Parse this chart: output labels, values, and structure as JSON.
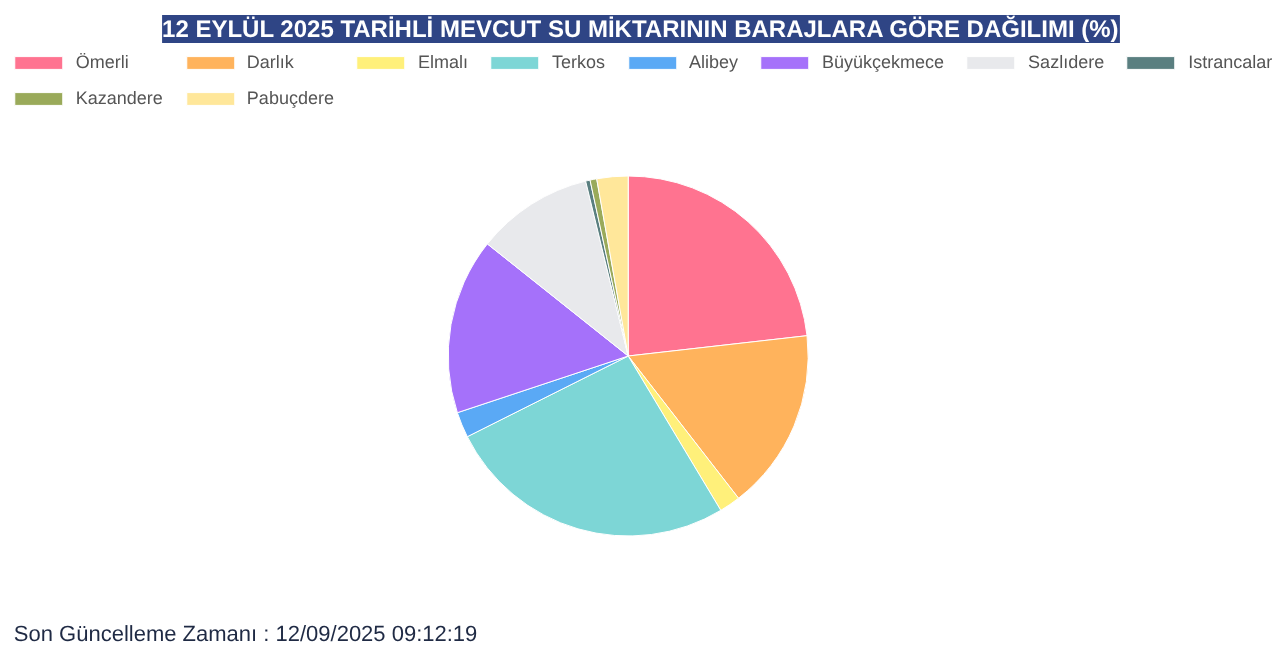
{
  "chart_data": {
    "type": "pie",
    "title": "12 EYLÜL 2025 TARİHLİ MEVCUT SU MİKTARININ BARAJLARA GÖRE DAĞILIMI (%)",
    "categories": [
      "Ömerli",
      "Darlık",
      "Elmalı",
      "Terkos",
      "Alibey",
      "Büyükçekmece",
      "Sazlıdere",
      "Istrancalar",
      "Kazandere",
      "Pabuçdere"
    ],
    "values": [
      23.2,
      16.3,
      1.9,
      26.2,
      2.3,
      15.8,
      10.5,
      0.4,
      0.6,
      2.8
    ],
    "colors": [
      "#ff7390",
      "#ffb35c",
      "#fff07a",
      "#7dd6d6",
      "#5aa9f5",
      "#a571fa",
      "#e8e9ec",
      "#5a7f80",
      "#9aaa5a",
      "#ffe79a"
    ],
    "legend": "top",
    "annotations": [
      "Son Güncelleme Zamanı : 12/09/2025 09:12:19"
    ]
  }
}
